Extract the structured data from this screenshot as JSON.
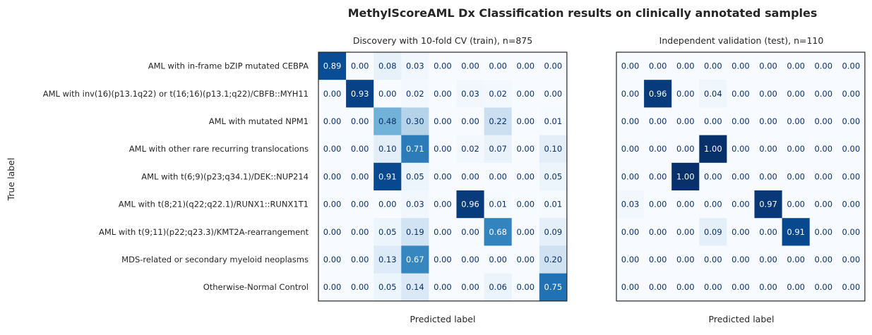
{
  "chart_data": {
    "type": "heatmap",
    "title": "MethylScoreAML Dx Classification results on clinically annotated samples",
    "ylabel": "True label",
    "row_labels": [
      "AML with in-frame bZIP mutated CEBPA",
      "AML with inv(16)(p13.1q22) or t(16;16)(p13.1;q22)/CBFB::MYH11",
      "AML with mutated NPM1",
      "AML with other rare recurring translocations",
      "AML with t(6;9)(p23;q34.1)/DEK::NUP214",
      "AML with t(8;21)(q22;q22.1)/RUNX1::RUNX1T1",
      "AML with t(9;11)(p22;q23.3)/KMT2A-rearrangement",
      "MDS-related or secondary myeloid neoplasms",
      "Otherwise-Normal Control"
    ],
    "colormap": "Blues",
    "vmin": 0,
    "vmax": 1,
    "panels": [
      {
        "title": "Discovery with 10-fold CV (train), n=875",
        "xlabel": "Predicted label",
        "matrix": [
          [
            0.89,
            0.0,
            0.08,
            0.03,
            0.0,
            0.0,
            0.0,
            0.0,
            0.0
          ],
          [
            0.0,
            0.93,
            0.0,
            0.02,
            0.0,
            0.03,
            0.02,
            0.0,
            0.0
          ],
          [
            0.0,
            0.0,
            0.48,
            0.3,
            0.0,
            0.0,
            0.22,
            0.0,
            0.01
          ],
          [
            0.0,
            0.0,
            0.1,
            0.71,
            0.0,
            0.02,
            0.07,
            0.0,
            0.1
          ],
          [
            0.0,
            0.0,
            0.91,
            0.05,
            0.0,
            0.0,
            0.0,
            0.0,
            0.05
          ],
          [
            0.0,
            0.0,
            0.0,
            0.03,
            0.0,
            0.96,
            0.01,
            0.0,
            0.01
          ],
          [
            0.0,
            0.0,
            0.05,
            0.19,
            0.0,
            0.0,
            0.68,
            0.0,
            0.09
          ],
          [
            0.0,
            0.0,
            0.13,
            0.67,
            0.0,
            0.0,
            0.0,
            0.0,
            0.2
          ],
          [
            0.0,
            0.0,
            0.05,
            0.14,
            0.0,
            0.0,
            0.06,
            0.0,
            0.75
          ]
        ]
      },
      {
        "title": "Independent validation (test), n=110",
        "xlabel": "Predicted label",
        "matrix": [
          [
            0.0,
            0.0,
            0.0,
            0.0,
            0.0,
            0.0,
            0.0,
            0.0,
            0.0
          ],
          [
            0.0,
            0.96,
            0.0,
            0.04,
            0.0,
            0.0,
            0.0,
            0.0,
            0.0
          ],
          [
            0.0,
            0.0,
            0.0,
            0.0,
            0.0,
            0.0,
            0.0,
            0.0,
            0.0
          ],
          [
            0.0,
            0.0,
            0.0,
            1.0,
            0.0,
            0.0,
            0.0,
            0.0,
            0.0
          ],
          [
            0.0,
            0.0,
            1.0,
            0.0,
            0.0,
            0.0,
            0.0,
            0.0,
            0.0
          ],
          [
            0.03,
            0.0,
            0.0,
            0.0,
            0.0,
            0.97,
            0.0,
            0.0,
            0.0
          ],
          [
            0.0,
            0.0,
            0.0,
            0.09,
            0.0,
            0.0,
            0.91,
            0.0,
            0.0
          ],
          [
            0.0,
            0.0,
            0.0,
            0.0,
            0.0,
            0.0,
            0.0,
            0.0,
            0.0
          ],
          [
            0.0,
            0.0,
            0.0,
            0.0,
            0.0,
            0.0,
            0.0,
            0.0,
            0.0
          ]
        ]
      }
    ]
  }
}
